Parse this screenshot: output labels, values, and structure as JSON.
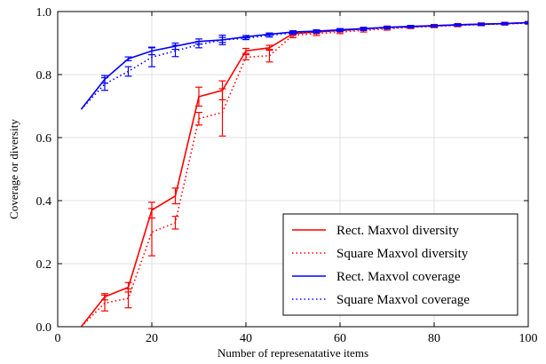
{
  "chart_data": {
    "type": "line",
    "title": "",
    "xlabel": "Number of represenatative items",
    "ylabel": "Coverage or diversity",
    "xlim": [
      0,
      100
    ],
    "ylim": [
      0.0,
      1.0
    ],
    "x_ticks": [
      "0",
      "20",
      "40",
      "60",
      "80",
      "100"
    ],
    "y_ticks": [
      "0.0",
      "0.2",
      "0.4",
      "0.6",
      "0.8",
      "1.0"
    ],
    "grid": true,
    "legend_position": "bottom-right",
    "series": [
      {
        "name": "Rect. Maxvol diversity",
        "color": "#ff0000",
        "style": "solid",
        "x": [
          5,
          10,
          15,
          20,
          25,
          30,
          35,
          40,
          45,
          50,
          55,
          60,
          65,
          70,
          75,
          80,
          85,
          90,
          95,
          100
        ],
        "y": [
          0.0,
          0.095,
          0.125,
          0.37,
          0.415,
          0.73,
          0.75,
          0.875,
          0.885,
          0.93,
          0.935,
          0.94,
          0.945,
          0.95,
          0.952,
          0.955,
          0.958,
          0.96,
          0.962,
          0.965
        ],
        "err": [
          0,
          0.01,
          0.015,
          0.025,
          0.025,
          0.03,
          0.03,
          0.008,
          0.008,
          0.006,
          0.005,
          0.004,
          0.004,
          0.004,
          0.004,
          0.004,
          0.004,
          0.004,
          0.004,
          0.003
        ]
      },
      {
        "name": "Square Maxvol diversity",
        "color": "#ff0000",
        "style": "dotted",
        "x": [
          5,
          10,
          15,
          20,
          25,
          30,
          35,
          40,
          45,
          50,
          55,
          60,
          65,
          70,
          75,
          80,
          85,
          90,
          95,
          100
        ],
        "y": [
          0.0,
          0.075,
          0.09,
          0.3,
          0.33,
          0.66,
          0.68,
          0.855,
          0.86,
          0.925,
          0.93,
          0.935,
          0.94,
          0.945,
          0.95,
          0.953,
          0.956,
          0.959,
          0.961,
          0.963
        ],
        "err": [
          0,
          0.025,
          0.03,
          0.075,
          0.02,
          0.02,
          0.075,
          0.008,
          0.02,
          0.008,
          0.006,
          0.005,
          0.005,
          0.004,
          0.004,
          0.004,
          0.004,
          0.004,
          0.004,
          0.003
        ]
      },
      {
        "name": "Rect. Maxvol coverage",
        "color": "#0000ff",
        "style": "solid",
        "x": [
          5,
          10,
          15,
          20,
          25,
          30,
          35,
          40,
          45,
          50,
          55,
          60,
          65,
          70,
          75,
          80,
          85,
          90,
          95,
          100
        ],
        "y": [
          0.69,
          0.785,
          0.85,
          0.875,
          0.89,
          0.905,
          0.91,
          0.92,
          0.928,
          0.935,
          0.938,
          0.942,
          0.946,
          0.95,
          0.953,
          0.955,
          0.958,
          0.96,
          0.962,
          0.965
        ],
        "err": [
          0,
          0.012,
          0.006,
          0.012,
          0.01,
          0.008,
          0.015,
          0.004,
          0.004,
          0.004,
          0.004,
          0.004,
          0.004,
          0.003,
          0.003,
          0.003,
          0.003,
          0.003,
          0.003,
          0.003
        ]
      },
      {
        "name": "Square Maxvol coverage",
        "color": "#0000ff",
        "style": "dotted",
        "x": [
          5,
          10,
          15,
          20,
          25,
          30,
          35,
          40,
          45,
          50,
          55,
          60,
          65,
          70,
          75,
          80,
          85,
          90,
          95,
          100
        ],
        "y": [
          0.69,
          0.77,
          0.81,
          0.855,
          0.875,
          0.895,
          0.91,
          0.915,
          0.925,
          0.932,
          0.936,
          0.94,
          0.944,
          0.948,
          0.951,
          0.954,
          0.957,
          0.959,
          0.961,
          0.964
        ],
        "err": [
          0,
          0.02,
          0.015,
          0.03,
          0.018,
          0.01,
          0.008,
          0.004,
          0.006,
          0.004,
          0.004,
          0.004,
          0.004,
          0.003,
          0.003,
          0.003,
          0.003,
          0.003,
          0.003,
          0.003
        ]
      }
    ]
  }
}
